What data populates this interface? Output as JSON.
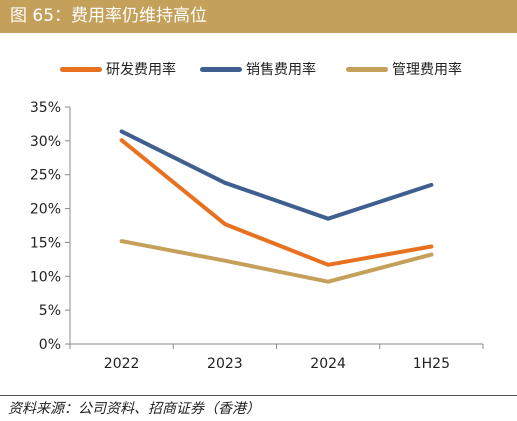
{
  "figure": {
    "title": "图 65：费用率仍维持高位"
  },
  "source": {
    "text": "资料来源：公司资料、招商证券（香港）"
  },
  "chart_data": {
    "type": "line",
    "categories": [
      "2022",
      "2023",
      "2024",
      "1H25"
    ],
    "series": [
      {
        "name": "研发费用率",
        "color": "#e8711f",
        "values": [
          30.1,
          17.7,
          11.7,
          14.4
        ]
      },
      {
        "name": "销售费用率",
        "color": "#3e5f90",
        "values": [
          31.4,
          23.8,
          18.5,
          23.5
        ]
      },
      {
        "name": "管理费用率",
        "color": "#c5a05a",
        "values": [
          15.2,
          12.3,
          9.2,
          13.2
        ]
      }
    ],
    "ylim": [
      0,
      35
    ],
    "yticks": [
      0,
      5,
      10,
      15,
      20,
      25,
      30,
      35
    ],
    "ytick_labels": [
      "0%",
      "5%",
      "10%",
      "15%",
      "20%",
      "25%",
      "30%",
      "35%"
    ],
    "xlabel": "",
    "ylabel": "",
    "grid": false,
    "legend": "top"
  }
}
